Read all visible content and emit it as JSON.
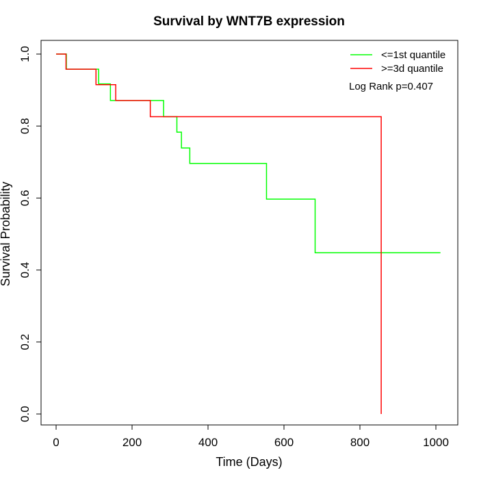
{
  "chart_data": {
    "type": "line",
    "title": "Survival by WNT7B expression",
    "xlabel": "Time (Days)",
    "ylabel": "Survival Probability",
    "xlim": [
      0,
      1010
    ],
    "ylim": [
      0,
      1
    ],
    "x_ticks": [
      0,
      200,
      400,
      600,
      800,
      1000
    ],
    "y_ticks": [
      0.0,
      0.2,
      0.4,
      0.6,
      0.8,
      1.0
    ],
    "x_tick_labels": [
      "0",
      "200",
      "400",
      "600",
      "800",
      "1000"
    ],
    "y_tick_labels": [
      "0.0",
      "0.2",
      "0.4",
      "0.6",
      "0.8",
      "1.0"
    ],
    "grid": false,
    "legend_position": "top-right",
    "annotation": "Log Rank p=0.407",
    "series": [
      {
        "name": "<=1st quantile",
        "color": "#00ff00",
        "step_points": [
          [
            0,
            1.0
          ],
          [
            27,
            0.958
          ],
          [
            112,
            0.917
          ],
          [
            143,
            0.871
          ],
          [
            283,
            0.826
          ],
          [
            318,
            0.783
          ],
          [
            330,
            0.739
          ],
          [
            352,
            0.696
          ],
          [
            554,
            0.597
          ],
          [
            682,
            0.448
          ],
          [
            1012,
            0.448
          ]
        ]
      },
      {
        "name": ">=3d quantile",
        "color": "#ff0000",
        "step_points": [
          [
            0,
            1.0
          ],
          [
            26,
            0.958
          ],
          [
            105,
            0.915
          ],
          [
            157,
            0.871
          ],
          [
            248,
            0.826
          ],
          [
            856,
            0.0
          ]
        ]
      }
    ]
  }
}
